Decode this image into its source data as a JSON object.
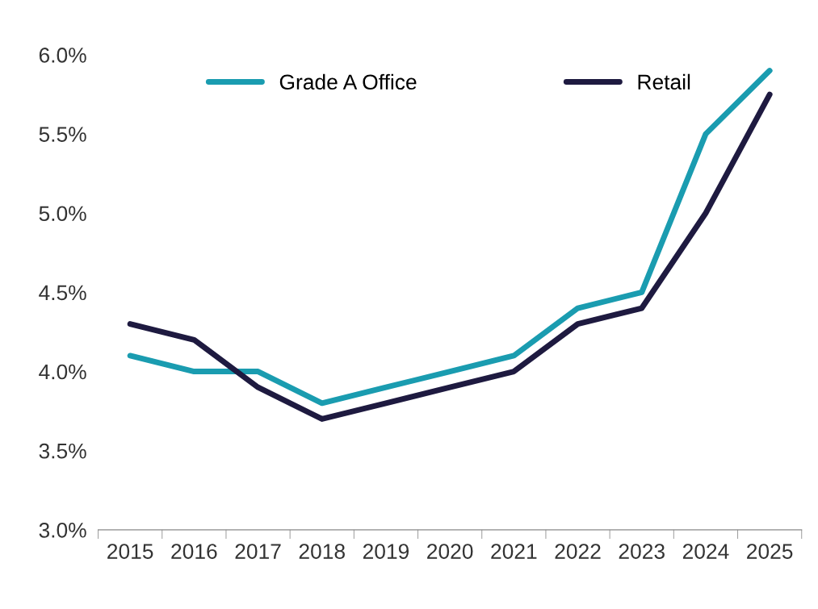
{
  "chart_data": {
    "type": "line",
    "categories": [
      "2015",
      "2016",
      "2017",
      "2018",
      "2019",
      "2020",
      "2021",
      "2022",
      "2023",
      "2024",
      "2025"
    ],
    "series": [
      {
        "name": "Grade A Office",
        "color": "#1a9cb0",
        "values": [
          4.1,
          4.0,
          4.0,
          3.8,
          3.9,
          4.0,
          4.1,
          4.4,
          4.5,
          5.5,
          5.9
        ]
      },
      {
        "name": "Retail",
        "color": "#1e1a40",
        "values": [
          4.3,
          4.2,
          3.9,
          3.7,
          3.8,
          3.9,
          4.0,
          4.3,
          4.4,
          5.0,
          5.75
        ]
      }
    ],
    "ylim": [
      3.0,
      6.0
    ],
    "yticks": [
      {
        "value": 3.0,
        "label": "3.0%"
      },
      {
        "value": 3.5,
        "label": "3.5%"
      },
      {
        "value": 4.0,
        "label": "4.0%"
      },
      {
        "value": 4.5,
        "label": "4.5%"
      },
      {
        "value": 5.0,
        "label": "5.0%"
      },
      {
        "value": 5.5,
        "label": "5.5%"
      },
      {
        "value": 6.0,
        "label": "6.0%"
      }
    ],
    "grid": false,
    "legend": "top",
    "marker": "none",
    "line_style": "solid"
  }
}
